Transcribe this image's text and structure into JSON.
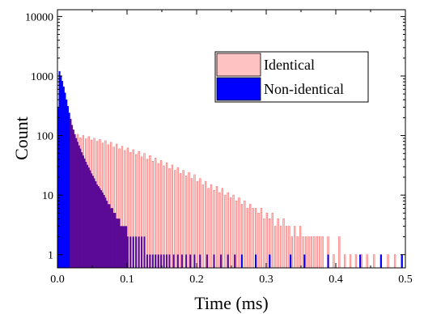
{
  "chart_data": {
    "type": "histogram",
    "xlabel": "Time (ms)",
    "ylabel": "Count",
    "xlim": [
      0.0,
      0.5
    ],
    "ylim": [
      0.6,
      13000
    ],
    "yscale": "log",
    "xticks": [
      "0.0",
      "0.1",
      "0.2",
      "0.3",
      "0.4",
      "0.5"
    ],
    "yticks": [
      "1",
      "10",
      "100",
      "1000",
      "10000"
    ],
    "grid": false,
    "legend": {
      "placement": "top-right"
    },
    "bin_width": 0.002,
    "series": [
      {
        "name": "Identical",
        "color": "#ff9a9a",
        "outline": "#ff6b6b",
        "centers": [
          0.021,
          0.025,
          0.029,
          0.033,
          0.037,
          0.041,
          0.045,
          0.049,
          0.053,
          0.057,
          0.061,
          0.065,
          0.069,
          0.073,
          0.077,
          0.081,
          0.085,
          0.089,
          0.093,
          0.097,
          0.101,
          0.105,
          0.109,
          0.113,
          0.117,
          0.121,
          0.125,
          0.129,
          0.133,
          0.137,
          0.141,
          0.145,
          0.149,
          0.153,
          0.157,
          0.161,
          0.165,
          0.169,
          0.173,
          0.177,
          0.181,
          0.185,
          0.189,
          0.193,
          0.197,
          0.201,
          0.205,
          0.209,
          0.213,
          0.217,
          0.221,
          0.225,
          0.229,
          0.233,
          0.237,
          0.241,
          0.245,
          0.249,
          0.253,
          0.257,
          0.261,
          0.265,
          0.269,
          0.273,
          0.277,
          0.281,
          0.285,
          0.289,
          0.293,
          0.297,
          0.301,
          0.305,
          0.309,
          0.313,
          0.317,
          0.321,
          0.325,
          0.329,
          0.333,
          0.337,
          0.341,
          0.345,
          0.349,
          0.353,
          0.357,
          0.361,
          0.365,
          0.369,
          0.373,
          0.377,
          0.381,
          0.389,
          0.397,
          0.405,
          0.413,
          0.421,
          0.429,
          0.437,
          0.445,
          0.455,
          0.465,
          0.475,
          0.485,
          0.495
        ],
        "values": [
          110,
          98,
          105,
          92,
          100,
          88,
          96,
          84,
          90,
          80,
          86,
          75,
          82,
          70,
          77,
          64,
          72,
          60,
          66,
          56,
          62,
          52,
          58,
          48,
          54,
          44,
          50,
          40,
          46,
          37,
          42,
          34,
          38,
          31,
          35,
          28,
          32,
          26,
          29,
          23,
          26,
          21,
          24,
          19,
          22,
          17,
          19,
          15,
          17,
          13,
          15,
          12,
          14,
          11,
          13,
          10,
          11,
          9,
          10,
          8,
          9,
          7,
          8,
          6,
          7,
          6,
          6,
          5,
          6,
          4,
          5,
          4,
          5,
          3,
          4,
          3,
          4,
          3,
          3,
          2,
          3,
          2,
          3,
          2,
          2,
          2,
          2,
          2,
          2,
          2,
          2,
          2,
          1,
          2,
          1,
          1,
          1,
          1,
          1,
          1,
          1,
          1,
          1,
          1
        ]
      },
      {
        "name": "Non-identical",
        "color": "#0000ff",
        "overlap_color": "#5a0a96",
        "centers": [
          0.001,
          0.003,
          0.005,
          0.007,
          0.009,
          0.011,
          0.013,
          0.015,
          0.017,
          0.019,
          0.021,
          0.023,
          0.025,
          0.027,
          0.029,
          0.031,
          0.033,
          0.035,
          0.037,
          0.039,
          0.041,
          0.043,
          0.045,
          0.047,
          0.049,
          0.051,
          0.053,
          0.055,
          0.057,
          0.059,
          0.061,
          0.063,
          0.065,
          0.067,
          0.069,
          0.071,
          0.073,
          0.075,
          0.077,
          0.079,
          0.081,
          0.083,
          0.085,
          0.087,
          0.089,
          0.091,
          0.093,
          0.095,
          0.097,
          0.099,
          0.101,
          0.105,
          0.109,
          0.113,
          0.117,
          0.121,
          0.125,
          0.129,
          0.133,
          0.137,
          0.141,
          0.145,
          0.149,
          0.153,
          0.157,
          0.161,
          0.167,
          0.173,
          0.179,
          0.185,
          0.191,
          0.197,
          0.205,
          0.215,
          0.225,
          0.235,
          0.245,
          0.255,
          0.265,
          0.285,
          0.305,
          0.335,
          0.355,
          0.389,
          0.435,
          0.465,
          0.495
        ],
        "values": [
          300,
          1200,
          1000,
          820,
          660,
          520,
          400,
          310,
          240,
          190,
          150,
          125,
          105,
          90,
          78,
          68,
          60,
          52,
          46,
          41,
          36,
          32,
          29,
          26,
          23,
          21,
          19,
          17,
          15,
          14,
          13,
          12,
          11,
          10,
          9,
          8,
          7,
          7,
          6,
          6,
          5,
          5,
          4,
          4,
          4,
          3,
          3,
          3,
          3,
          3,
          2,
          2,
          2,
          2,
          2,
          2,
          2,
          1,
          1,
          1,
          1,
          1,
          1,
          1,
          1,
          1,
          1,
          1,
          1,
          1,
          1,
          1,
          1,
          1,
          1,
          1,
          1,
          1,
          1,
          1,
          1,
          1,
          1,
          1,
          1,
          1,
          1
        ]
      }
    ]
  }
}
